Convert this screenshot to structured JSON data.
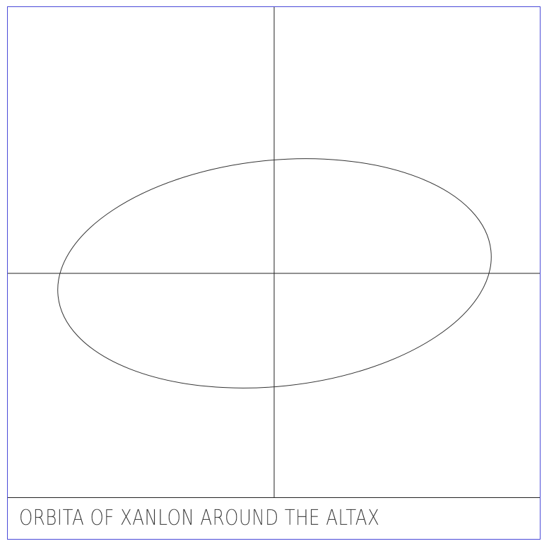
{
  "caption": "ORBITA OF XANLON AROUND THE ALTAX",
  "colors": {
    "frame_border": "#4a4ad8",
    "axis_line": "#222222",
    "orbit_line": "#333333",
    "caption_text": "#2a2a2a"
  },
  "orbit": {
    "shape": "ellipse"
  }
}
